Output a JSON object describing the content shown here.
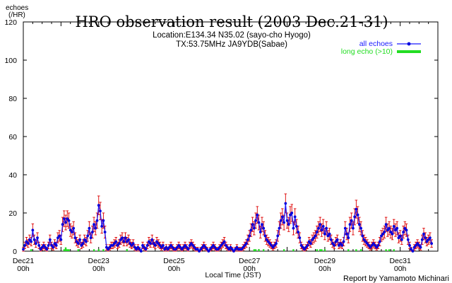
{
  "chart_data": {
    "type": "line",
    "title": "HRO observation result (2003 Dec.21-31)",
    "subtitle_lines": [
      "Location:E134.34 N35.02 (sayo-cho Hyogo)",
      "TX:53.75MHz JA9YDB(Sabae)"
    ],
    "ylabel_lines": [
      "echoes",
      "(/HR)"
    ],
    "xlabel": "Local Time (JST)",
    "credit": "Report by Yamamoto Michinari",
    "ylim": [
      0,
      120
    ],
    "xlim_hours": [
      0,
      264
    ],
    "y_ticks": [
      0,
      20,
      40,
      60,
      80,
      100,
      120
    ],
    "x_ticks": [
      {
        "hour": 0,
        "line1": "Dec21",
        "line2": "00h"
      },
      {
        "hour": 48,
        "line1": "Dec23",
        "line2": "00h"
      },
      {
        "hour": 96,
        "line1": "Dec25",
        "line2": "00h"
      },
      {
        "hour": 144,
        "line1": "Dec27",
        "line2": "00h"
      },
      {
        "hour": 192,
        "line1": "Dec29",
        "line2": "00h"
      },
      {
        "hour": 240,
        "line1": "Dec31",
        "line2": "00h"
      }
    ],
    "grid": false,
    "legend_position": "top-right",
    "colors": {
      "all": "#1a1aff",
      "all_marker": "#0000dd",
      "error": "#dd0000",
      "long": "#22dd22"
    },
    "series": [
      {
        "name": "all echoes",
        "values": [
          1,
          3,
          5,
          4,
          6,
          5,
          11,
          6,
          4,
          7,
          3,
          1,
          2,
          3,
          2,
          1,
          3,
          6,
          3,
          2,
          4,
          3,
          7,
          8,
          6,
          14,
          17,
          15,
          17,
          16,
          11,
          10,
          12,
          7,
          5,
          4,
          6,
          3,
          4,
          6,
          5,
          8,
          12,
          7,
          10,
          14,
          12,
          16,
          24,
          21,
          13,
          16,
          10,
          2,
          1,
          2,
          3,
          3,
          4,
          5,
          3,
          4,
          6,
          7,
          5,
          7,
          5,
          6,
          4,
          3,
          4,
          2,
          1,
          2,
          1,
          0,
          3,
          2,
          1,
          3,
          5,
          4,
          6,
          4,
          3,
          5,
          4,
          3,
          2,
          3,
          1,
          2,
          1,
          2,
          3,
          2,
          1,
          1,
          2,
          3,
          2,
          1,
          2,
          3,
          2,
          1,
          3,
          4,
          3,
          2,
          1,
          1,
          0,
          1,
          2,
          3,
          2,
          1,
          0,
          1,
          2,
          3,
          2,
          1,
          1,
          2,
          3,
          4,
          5,
          3,
          2,
          1,
          2,
          1,
          0,
          1,
          2,
          1,
          1,
          1,
          2,
          3,
          4,
          6,
          8,
          11,
          14,
          12,
          16,
          19,
          15,
          10,
          14,
          12,
          8,
          6,
          5,
          4,
          3,
          2,
          3,
          4,
          8,
          12,
          16,
          18,
          15,
          25,
          16,
          14,
          19,
          20,
          12,
          18,
          13,
          10,
          7,
          3,
          2,
          1,
          2,
          3,
          5,
          4,
          6,
          7,
          8,
          10,
          12,
          14,
          11,
          13,
          9,
          12,
          8,
          9,
          6,
          4,
          3,
          5,
          6,
          3,
          4,
          3,
          5,
          12,
          9,
          7,
          14,
          16,
          12,
          18,
          22,
          19,
          14,
          12,
          8,
          6,
          5,
          4,
          3,
          2,
          3,
          4,
          3,
          2,
          3,
          5,
          8,
          9,
          10,
          14,
          11,
          12,
          10,
          9,
          13,
          11,
          12,
          7,
          8,
          6,
          10,
          12,
          11,
          6,
          3,
          1,
          0,
          2,
          3,
          4,
          3,
          2,
          6,
          9,
          7,
          5,
          6,
          7,
          4
        ]
      },
      {
        "name": "long echo (>10)",
        "values": [
          0,
          0,
          0,
          0,
          0,
          1,
          0,
          0,
          0,
          0,
          0,
          0,
          0,
          0,
          0,
          0,
          0,
          0,
          0,
          0,
          0,
          0,
          0,
          0,
          0,
          0,
          1,
          2,
          1,
          1,
          0,
          0,
          0,
          0,
          0,
          1,
          0,
          0,
          0,
          0,
          0,
          0,
          0,
          0,
          0,
          1,
          0,
          0,
          1,
          0,
          0,
          1,
          0,
          0,
          0,
          0,
          0,
          0,
          0,
          0,
          0,
          0,
          0,
          0,
          0,
          0,
          1,
          0,
          0,
          0,
          0,
          0,
          0,
          0,
          0,
          0,
          0,
          0,
          0,
          0,
          0,
          0,
          0,
          0,
          0,
          0,
          0,
          0,
          0,
          0,
          0,
          0,
          0,
          0,
          0,
          0,
          0,
          0,
          0,
          0,
          0,
          0,
          0,
          0,
          0,
          0,
          0,
          0,
          0,
          0,
          0,
          0,
          0,
          0,
          0,
          0,
          0,
          0,
          0,
          0,
          0,
          0,
          0,
          0,
          0,
          0,
          0,
          0,
          0,
          0,
          0,
          0,
          0,
          0,
          0,
          0,
          0,
          0,
          0,
          0,
          0,
          0,
          0,
          0,
          0,
          0,
          0,
          1,
          1,
          0,
          1,
          0,
          0,
          1,
          0,
          0,
          0,
          0,
          0,
          0,
          0,
          0,
          0,
          0,
          0,
          0,
          1,
          0,
          0,
          0,
          0,
          0,
          1,
          0,
          0,
          0,
          0,
          0,
          0,
          0,
          0,
          0,
          0,
          0,
          0,
          0,
          0,
          1,
          0,
          1,
          1,
          0,
          1,
          0,
          0,
          0,
          0,
          0,
          0,
          0,
          0,
          0,
          0,
          0,
          0,
          0,
          0,
          1,
          0,
          0,
          0,
          0,
          1,
          0,
          0,
          1,
          0,
          0,
          0,
          0,
          0,
          0,
          0,
          0,
          0,
          0,
          0,
          0,
          0,
          0,
          0,
          1,
          0,
          1,
          0,
          0,
          1,
          0,
          0,
          0,
          0,
          0,
          0,
          0,
          0,
          0,
          0,
          0,
          0,
          0,
          0,
          0,
          0,
          0,
          0,
          0,
          0,
          0,
          0,
          0
        ]
      }
    ]
  }
}
